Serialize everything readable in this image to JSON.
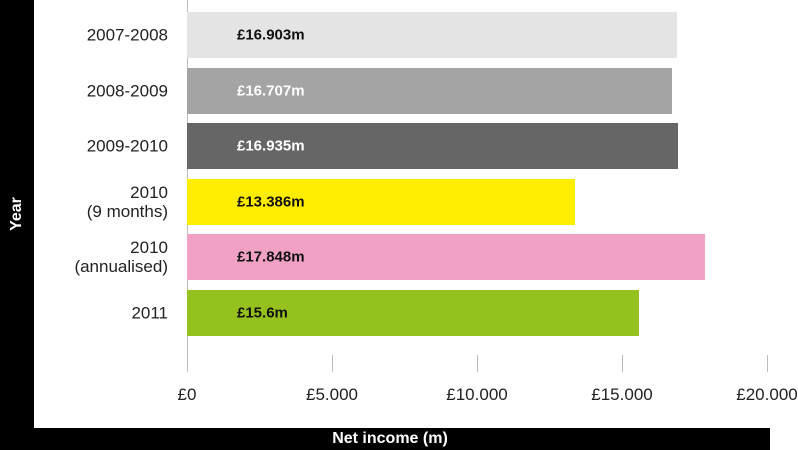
{
  "chart_data": {
    "type": "barh",
    "y_label": "Year",
    "x_label": "Net income (m)",
    "categories": [
      "2007-2008",
      "2008-2009",
      "2009-2010",
      "2010\n(9 months)",
      "2010\n(annualised)",
      "2011"
    ],
    "values": [
      16.903,
      16.707,
      16.935,
      13.386,
      17.848,
      15.6
    ],
    "value_labels": [
      "£16.903m",
      "£16.707m",
      "£16.935m",
      "£13.386m",
      "£17.848m",
      "£15.6m"
    ],
    "colors": [
      "#e3e4e3",
      "#a4a4a4",
      "#666666",
      "#ffed00",
      "#f0a1c4",
      "#95c11f"
    ],
    "value_label_colors": [
      "#111111",
      "#ffffff",
      "#ffffff",
      "#111111",
      "#111111",
      "#111111"
    ],
    "xlim": [
      0,
      20
    ],
    "xticks": [
      {
        "value": 0,
        "label": "£0"
      },
      {
        "value": 5,
        "label": "£5.000"
      },
      {
        "value": 10,
        "label": "£10.000"
      },
      {
        "value": 15,
        "label": "£15.000"
      },
      {
        "value": 20,
        "label": "£20.000"
      }
    ]
  }
}
